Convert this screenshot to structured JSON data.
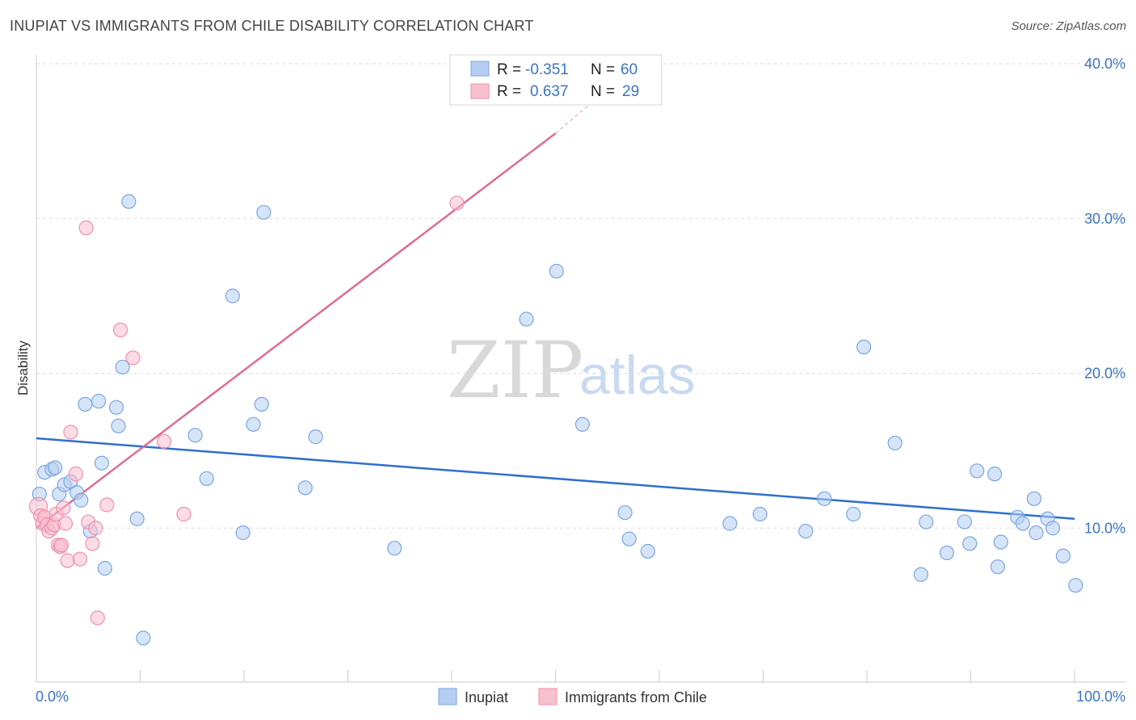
{
  "title": "INUPIAT VS IMMIGRANTS FROM CHILE DISABILITY CORRELATION CHART",
  "source": "Source: ZipAtlas.com",
  "watermark": {
    "zip": "ZIP",
    "atlas": "atlas"
  },
  "colors": {
    "blue_fill": "#b5cdf0",
    "blue_stroke": "#7aa6e0",
    "blue_line": "#2f6fcc",
    "pink_fill": "#f7c0cf",
    "pink_stroke": "#ee90aa",
    "pink_line": "#e06b93",
    "grid": "#dddddd",
    "tick_text": "#3a74c4"
  },
  "legend": {
    "rows": [
      {
        "r_label": "R =",
        "r_value": "-0.351",
        "n_label": "N =",
        "n_value": "60"
      },
      {
        "r_label": "R =",
        "r_value": "0.637",
        "n_label": "N =",
        "n_value": "29"
      }
    ]
  },
  "chart_data": {
    "type": "scatter",
    "title": "INUPIAT VS IMMIGRANTS FROM CHILE DISABILITY CORRELATION CHART",
    "xlabel": "",
    "ylabel": "Disability",
    "xlim": [
      0,
      100
    ],
    "ylim": [
      0,
      40
    ],
    "x_tick_labels": [
      "0.0%",
      "100.0%"
    ],
    "y_ticks": [
      10,
      20,
      30,
      40
    ],
    "y_tick_labels": [
      "10.0%",
      "20.0%",
      "30.0%",
      "40.0%"
    ],
    "series": [
      {
        "name": "Inupiat",
        "color": "#b5cdf0",
        "r": -0.351,
        "n": 60,
        "trend": {
          "x0": 0,
          "y0": 15.8,
          "x1": 100,
          "y1": 10.6
        },
        "points": [
          [
            0.3,
            12.2
          ],
          [
            0.8,
            13.6
          ],
          [
            1.5,
            13.8
          ],
          [
            1.8,
            13.9
          ],
          [
            2.2,
            12.2
          ],
          [
            2.7,
            12.8
          ],
          [
            3.3,
            13.0
          ],
          [
            3.9,
            12.3
          ],
          [
            4.3,
            11.8
          ],
          [
            4.7,
            18.0
          ],
          [
            5.2,
            9.8
          ],
          [
            6.0,
            18.2
          ],
          [
            6.3,
            14.2
          ],
          [
            6.6,
            7.4
          ],
          [
            7.7,
            17.8
          ],
          [
            7.9,
            16.6
          ],
          [
            8.3,
            20.4
          ],
          [
            8.9,
            31.1
          ],
          [
            9.7,
            10.6
          ],
          [
            10.3,
            2.9
          ],
          [
            15.3,
            16.0
          ],
          [
            16.4,
            13.2
          ],
          [
            18.9,
            25.0
          ],
          [
            19.9,
            9.7
          ],
          [
            20.9,
            16.7
          ],
          [
            21.7,
            18.0
          ],
          [
            21.9,
            30.4
          ],
          [
            25.9,
            12.6
          ],
          [
            26.9,
            15.9
          ],
          [
            34.5,
            8.7
          ],
          [
            47.2,
            23.5
          ],
          [
            50.1,
            26.6
          ],
          [
            52.6,
            16.7
          ],
          [
            56.7,
            11.0
          ],
          [
            57.1,
            9.3
          ],
          [
            58.9,
            8.5
          ],
          [
            66.8,
            10.3
          ],
          [
            69.7,
            10.9
          ],
          [
            74.1,
            9.8
          ],
          [
            75.9,
            11.9
          ],
          [
            78.7,
            10.9
          ],
          [
            79.7,
            21.7
          ],
          [
            82.7,
            15.5
          ],
          [
            85.2,
            7.0
          ],
          [
            85.7,
            10.4
          ],
          [
            87.7,
            8.4
          ],
          [
            89.4,
            10.4
          ],
          [
            89.9,
            9.0
          ],
          [
            90.6,
            13.7
          ],
          [
            92.3,
            13.5
          ],
          [
            92.6,
            7.5
          ],
          [
            92.9,
            9.1
          ],
          [
            94.5,
            10.7
          ],
          [
            95.0,
            10.3
          ],
          [
            96.1,
            11.9
          ],
          [
            96.3,
            9.7
          ],
          [
            97.4,
            10.6
          ],
          [
            97.9,
            10.0
          ],
          [
            98.9,
            8.2
          ],
          [
            100.1,
            6.3
          ]
        ]
      },
      {
        "name": "Immigrants from Chile",
        "color": "#f7c0cf",
        "r": 0.637,
        "n": 29,
        "trend": {
          "x0": 0,
          "y0": 10.0,
          "x1": 50,
          "y1": 35.5
        },
        "trend_dashed_to": {
          "x": 54,
          "y": 37.8
        },
        "points": [
          [
            0.2,
            11.4
          ],
          [
            0.4,
            10.8
          ],
          [
            0.6,
            10.3
          ],
          [
            0.8,
            10.7
          ],
          [
            1.0,
            10.2
          ],
          [
            1.2,
            9.8
          ],
          [
            1.5,
            10.0
          ],
          [
            1.7,
            10.2
          ],
          [
            1.9,
            10.9
          ],
          [
            2.1,
            8.9
          ],
          [
            2.3,
            8.8
          ],
          [
            2.4,
            8.9
          ],
          [
            2.6,
            11.3
          ],
          [
            2.8,
            10.3
          ],
          [
            3.0,
            7.9
          ],
          [
            3.3,
            16.2
          ],
          [
            3.8,
            13.5
          ],
          [
            4.2,
            8.0
          ],
          [
            4.8,
            29.4
          ],
          [
            5.0,
            10.4
          ],
          [
            5.4,
            9.0
          ],
          [
            5.7,
            10.0
          ],
          [
            5.9,
            4.2
          ],
          [
            6.8,
            11.5
          ],
          [
            8.1,
            22.8
          ],
          [
            9.3,
            21.0
          ],
          [
            12.3,
            15.6
          ],
          [
            14.2,
            10.9
          ],
          [
            40.5,
            31.0
          ]
        ]
      }
    ]
  },
  "bottom_legend": [
    {
      "label": "Inupiat"
    },
    {
      "label": "Immigrants from Chile"
    }
  ]
}
